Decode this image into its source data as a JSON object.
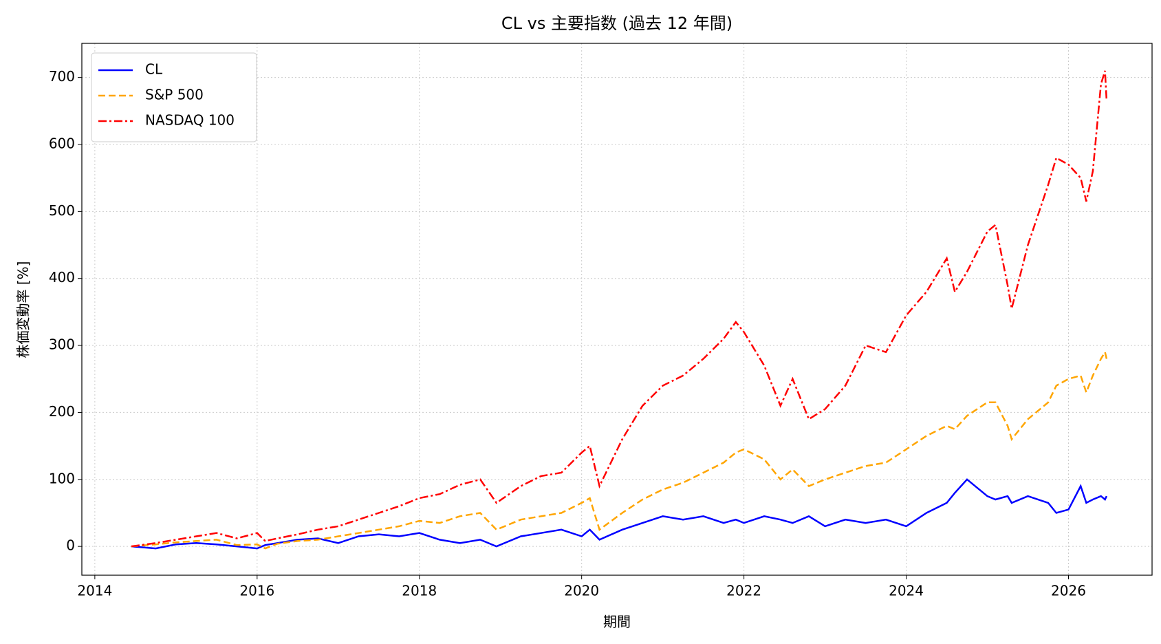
{
  "chart_data": {
    "type": "line",
    "title": "CL vs 主要指数 (過去 12 年間)",
    "xlabel": "期間",
    "ylabel": "株価変動率 [%]",
    "x": [
      2014.45,
      2014.75,
      2015.0,
      2015.25,
      2015.5,
      2015.75,
      2016.0,
      2016.1,
      2016.25,
      2016.5,
      2016.75,
      2017.0,
      2017.25,
      2017.5,
      2017.75,
      2018.0,
      2018.25,
      2018.5,
      2018.75,
      2018.95,
      2019.25,
      2019.5,
      2019.75,
      2020.0,
      2020.1,
      2020.22,
      2020.5,
      2020.75,
      2021.0,
      2021.25,
      2021.5,
      2021.75,
      2021.9,
      2022.0,
      2022.25,
      2022.45,
      2022.6,
      2022.8,
      2023.0,
      2023.25,
      2023.5,
      2023.75,
      2024.0,
      2024.25,
      2024.5,
      2024.6,
      2024.75,
      2025.0,
      2025.1,
      2025.25,
      2025.3,
      2025.5,
      2025.75,
      2025.85,
      2026.0,
      2026.15,
      2026.22,
      2026.3,
      2026.4,
      2026.45,
      2026.47
    ],
    "series": [
      {
        "name": "CL",
        "color": "#0000ff",
        "dash": "solid",
        "values": [
          0,
          -3,
          3,
          5,
          3,
          0,
          -3,
          2,
          5,
          10,
          12,
          5,
          15,
          18,
          15,
          20,
          10,
          5,
          10,
          0,
          15,
          20,
          25,
          15,
          25,
          10,
          25,
          35,
          45,
          40,
          45,
          35,
          40,
          35,
          45,
          40,
          35,
          45,
          30,
          40,
          35,
          40,
          30,
          50,
          65,
          80,
          100,
          75,
          70,
          75,
          65,
          75,
          65,
          50,
          55,
          90,
          65,
          70,
          75,
          70,
          75
        ]
      },
      {
        "name": "S&P 500",
        "color": "#ffa500",
        "dash": "dashed",
        "values": [
          0,
          3,
          6,
          8,
          10,
          2,
          3,
          -3,
          4,
          8,
          10,
          15,
          20,
          25,
          30,
          38,
          35,
          45,
          50,
          25,
          40,
          45,
          50,
          65,
          72,
          25,
          50,
          70,
          85,
          95,
          110,
          125,
          140,
          145,
          130,
          100,
          115,
          90,
          100,
          110,
          120,
          125,
          145,
          165,
          180,
          175,
          195,
          215,
          215,
          180,
          160,
          190,
          215,
          240,
          250,
          255,
          230,
          255,
          280,
          290,
          280
        ]
      },
      {
        "name": "NASDAQ 100",
        "color": "#ff0000",
        "dash": "dashdot",
        "values": [
          0,
          5,
          10,
          15,
          20,
          12,
          20,
          8,
          12,
          18,
          25,
          30,
          40,
          50,
          60,
          72,
          78,
          92,
          100,
          65,
          90,
          105,
          110,
          140,
          150,
          90,
          160,
          210,
          240,
          255,
          280,
          310,
          335,
          320,
          270,
          210,
          250,
          190,
          205,
          240,
          300,
          290,
          345,
          380,
          430,
          380,
          410,
          470,
          480,
          390,
          355,
          450,
          540,
          580,
          570,
          550,
          515,
          560,
          690,
          710,
          665
        ]
      }
    ],
    "xlim": [
      2013.84,
      2027.03
    ],
    "xticks": [
      2014,
      2016,
      2018,
      2020,
      2022,
      2024,
      2026
    ],
    "ylim": [
      -43,
      751
    ],
    "yticks": [
      0,
      100,
      200,
      300,
      400,
      500,
      600,
      700
    ],
    "grid": true,
    "legend": "upper-left"
  }
}
